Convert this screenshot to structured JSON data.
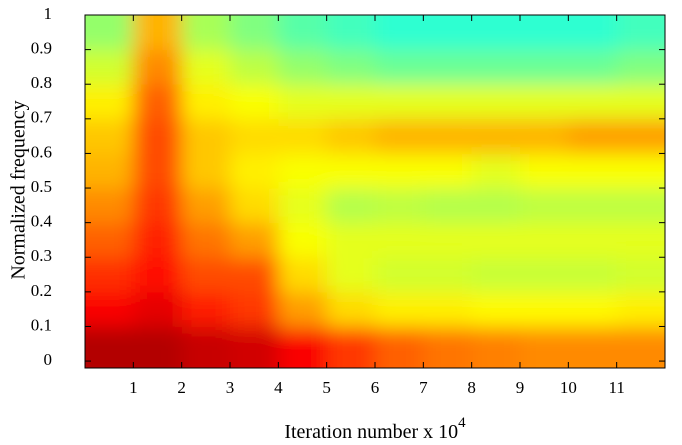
{
  "chart_data": {
    "type": "heatmap",
    "xlabel": "Iteration number x 10",
    "xlabel_exponent": "4",
    "ylabel": "Normalized frequency",
    "colormap": "jet",
    "clim": [
      0,
      1
    ],
    "xlim": [
      0,
      12
    ],
    "ylim": [
      -0.02,
      1
    ],
    "xticks": [
      1,
      2,
      3,
      4,
      5,
      6,
      7,
      8,
      9,
      10,
      11
    ],
    "yticks": [
      0,
      0.1,
      0.2,
      0.3,
      0.4,
      0.5,
      0.6,
      0.7,
      0.8,
      0.9,
      1
    ],
    "xbins": [
      0,
      1,
      2,
      3,
      4,
      5,
      6,
      7,
      8,
      9,
      10,
      11,
      12
    ],
    "ybins": [
      -0.02,
      0.1,
      0.2,
      0.3,
      0.4,
      0.5,
      0.6,
      0.7,
      0.8,
      0.9,
      1
    ],
    "z": [
      [
        0.95,
        0.95,
        0.93,
        0.92,
        0.88,
        0.82,
        0.78,
        0.76,
        0.75,
        0.74,
        0.74,
        0.74
      ],
      [
        0.88,
        0.9,
        0.85,
        0.82,
        0.72,
        0.66,
        0.64,
        0.64,
        0.63,
        0.63,
        0.63,
        0.64
      ],
      [
        0.83,
        0.86,
        0.8,
        0.8,
        0.66,
        0.6,
        0.58,
        0.58,
        0.57,
        0.57,
        0.57,
        0.58
      ],
      [
        0.78,
        0.84,
        0.76,
        0.72,
        0.62,
        0.6,
        0.6,
        0.6,
        0.6,
        0.6,
        0.6,
        0.6
      ],
      [
        0.74,
        0.82,
        0.72,
        0.66,
        0.6,
        0.55,
        0.56,
        0.55,
        0.55,
        0.56,
        0.56,
        0.56
      ],
      [
        0.7,
        0.8,
        0.68,
        0.64,
        0.62,
        0.62,
        0.62,
        0.62,
        0.6,
        0.62,
        0.62,
        0.62
      ],
      [
        0.68,
        0.8,
        0.68,
        0.66,
        0.66,
        0.68,
        0.7,
        0.7,
        0.7,
        0.7,
        0.72,
        0.72
      ],
      [
        0.64,
        0.78,
        0.64,
        0.62,
        0.6,
        0.6,
        0.6,
        0.6,
        0.6,
        0.6,
        0.6,
        0.6
      ],
      [
        0.58,
        0.74,
        0.6,
        0.56,
        0.52,
        0.5,
        0.48,
        0.48,
        0.48,
        0.48,
        0.48,
        0.5
      ],
      [
        0.52,
        0.7,
        0.54,
        0.5,
        0.46,
        0.44,
        0.42,
        0.42,
        0.42,
        0.42,
        0.42,
        0.44
      ]
    ]
  }
}
